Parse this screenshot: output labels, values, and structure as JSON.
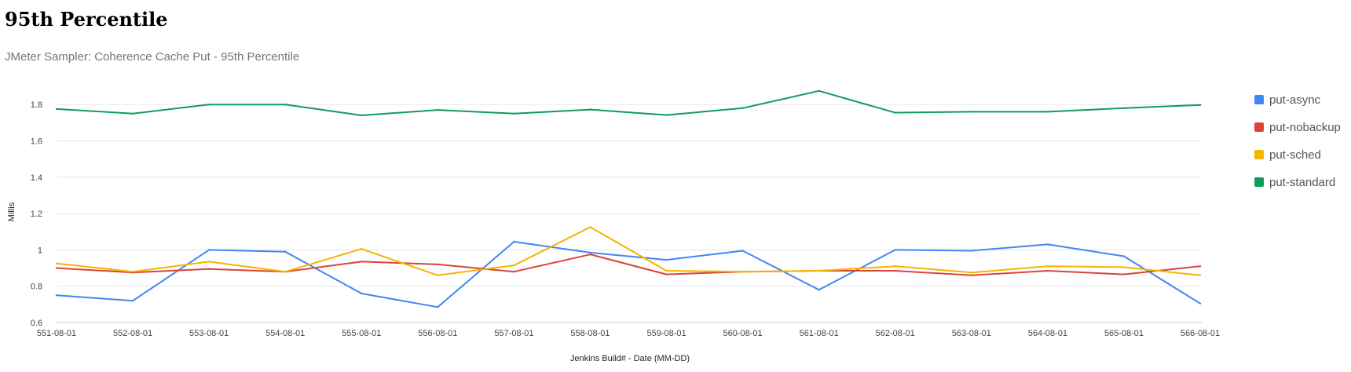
{
  "page": {
    "title": "95th Percentile",
    "subtitle": "JMeter Sampler: Coherence Cache Put - 95th Percentile"
  },
  "chart_data": {
    "type": "line",
    "title": "95th Percentile",
    "subtitle": "JMeter Sampler: Coherence Cache Put - 95th Percentile",
    "xlabel": "Jenkins Build# - Date (MM-DD)",
    "ylabel": "Millis",
    "ylim": [
      0.6,
      1.9
    ],
    "yticks": [
      0.6,
      0.8,
      1,
      1.2,
      1.4,
      1.6,
      1.8
    ],
    "ytick_labels": [
      "0.6",
      "0.8",
      "1",
      "1.2",
      "1.4",
      "1.6",
      "1.8"
    ],
    "grid": true,
    "legend_position": "right",
    "categories": [
      "551-08-01",
      "552-08-01",
      "553-08-01",
      "554-08-01",
      "555-08-01",
      "556-08-01",
      "557-08-01",
      "558-08-01",
      "559-08-01",
      "560-08-01",
      "561-08-01",
      "562-08-01",
      "563-08-01",
      "564-08-01",
      "565-08-01",
      "566-08-01"
    ],
    "series": [
      {
        "name": "put-async",
        "color": "#4285f4",
        "values": [
          0.75,
          0.72,
          1.0,
          0.99,
          0.76,
          0.685,
          1.045,
          0.985,
          0.945,
          0.995,
          0.78,
          1.0,
          0.995,
          1.03,
          0.965,
          0.705
        ]
      },
      {
        "name": "put-nobackup",
        "color": "#db4437",
        "values": [
          0.9,
          0.875,
          0.895,
          0.88,
          0.935,
          0.92,
          0.88,
          0.975,
          0.865,
          0.88,
          0.885,
          0.885,
          0.86,
          0.885,
          0.865,
          0.91
        ]
      },
      {
        "name": "put-sched",
        "color": "#f4b400",
        "values": [
          0.925,
          0.88,
          0.935,
          0.88,
          1.005,
          0.86,
          0.915,
          1.125,
          0.885,
          0.88,
          0.885,
          0.91,
          0.875,
          0.91,
          0.905,
          0.86
        ]
      },
      {
        "name": "put-standard",
        "color": "#0f9d58",
        "values": [
          1.775,
          1.75,
          1.8,
          1.8,
          1.74,
          1.77,
          1.75,
          1.772,
          1.742,
          1.78,
          1.875,
          1.755,
          1.76,
          1.76,
          1.78,
          1.797
        ]
      }
    ]
  }
}
